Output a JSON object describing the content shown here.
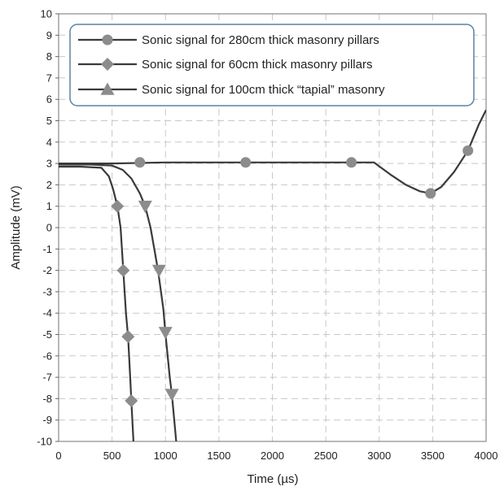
{
  "chart_data": {
    "type": "line",
    "title": "",
    "xlabel": "Time (µs)",
    "ylabel": "Amplitude (mV)",
    "xlim": [
      0,
      4000
    ],
    "ylim": [
      -10,
      10
    ],
    "x_ticks": [
      "0",
      "500",
      "1000",
      "1500",
      "2000",
      "2500",
      "3000",
      "3500",
      "4000"
    ],
    "y_ticks": [
      "10",
      "9",
      "8",
      "7",
      "6",
      "5",
      "4",
      "3",
      "2",
      "1",
      "0",
      "-1",
      "-2",
      "-3",
      "-4",
      "-5",
      "-6",
      "-7",
      "-8",
      "-9",
      "-10"
    ],
    "grid": true,
    "legend_position": "top",
    "series": [
      {
        "name": "Sonic signal for 280cm thick masonry pillars",
        "marker": "circle",
        "color": "#3a3a3a",
        "marker_color": "#8c8c8c",
        "line": [
          [
            0,
            3.0
          ],
          [
            500,
            3.0
          ],
          [
            1000,
            3.05
          ],
          [
            1500,
            3.05
          ],
          [
            2000,
            3.05
          ],
          [
            2500,
            3.05
          ],
          [
            2950,
            3.05
          ],
          [
            3100,
            2.5
          ],
          [
            3250,
            2.0
          ],
          [
            3380,
            1.7
          ],
          [
            3480,
            1.6
          ],
          [
            3580,
            1.9
          ],
          [
            3700,
            2.6
          ],
          [
            3830,
            3.6
          ],
          [
            3930,
            4.8
          ],
          [
            4000,
            5.5
          ]
        ],
        "markers": [
          [
            760,
            3.05
          ],
          [
            1750,
            3.05
          ],
          [
            2740,
            3.05
          ],
          [
            3480,
            1.6
          ],
          [
            3830,
            3.6
          ]
        ]
      },
      {
        "name": "Sonic signal for 60cm thick masonry pillars",
        "marker": "diamond",
        "color": "#3a3a3a",
        "marker_color": "#8c8c8c",
        "line": [
          [
            0,
            2.85
          ],
          [
            200,
            2.85
          ],
          [
            400,
            2.8
          ],
          [
            470,
            2.4
          ],
          [
            510,
            1.8
          ],
          [
            550,
            1.0
          ],
          [
            580,
            0.0
          ],
          [
            605,
            -2.0
          ],
          [
            630,
            -4.0
          ],
          [
            650,
            -5.1
          ],
          [
            670,
            -7.0
          ],
          [
            680,
            -8.1
          ],
          [
            700,
            -10.0
          ]
        ],
        "markers": [
          [
            550,
            1.0
          ],
          [
            605,
            -2.0
          ],
          [
            650,
            -5.1
          ],
          [
            680,
            -8.1
          ]
        ]
      },
      {
        "name": "Sonic signal for 100cm thick “tapial” masonry",
        "marker": "triangle",
        "color": "#3a3a3a",
        "marker_color": "#8c8c8c",
        "line": [
          [
            0,
            2.95
          ],
          [
            300,
            2.95
          ],
          [
            500,
            2.9
          ],
          [
            600,
            2.7
          ],
          [
            680,
            2.3
          ],
          [
            760,
            1.6
          ],
          [
            810,
            1.0
          ],
          [
            860,
            0.0
          ],
          [
            930,
            -2.0
          ],
          [
            980,
            -3.8
          ],
          [
            1000,
            -5.0
          ],
          [
            1040,
            -7.0
          ],
          [
            1060,
            -7.8
          ],
          [
            1100,
            -10.0
          ]
        ],
        "markers": [
          [
            810,
            1.0
          ],
          [
            940,
            -2.0
          ],
          [
            1000,
            -4.9
          ],
          [
            1060,
            -7.8
          ]
        ]
      }
    ]
  }
}
